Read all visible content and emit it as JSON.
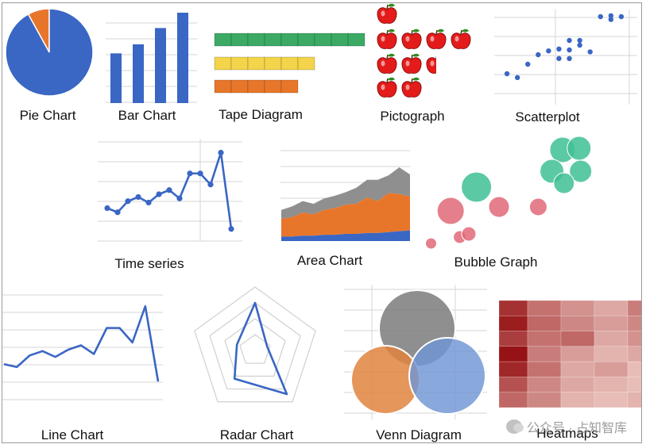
{
  "captions": {
    "pie": "Pie Chart",
    "bar": "Bar Chart",
    "tape": "Tape Diagram",
    "pictograph": "Pictograph",
    "scatter": "Scatterplot",
    "timeseries": "Time series",
    "area": "Area Chart",
    "bubble": "Bubble Graph",
    "line": "Line Chart",
    "radar": "Radar Chart",
    "venn": "Venn Diagram",
    "heatmap": "Heatmaps"
  },
  "watermark": "公众号 · 占知智库",
  "colors": {
    "blue": "#3a66c4",
    "orange": "#e8762a",
    "green": "#3caa64",
    "yellow": "#f3d44a",
    "grid": "#d6d6d6",
    "apple_red": "#e31b1b",
    "venn_gray": "#7b7b7b",
    "venn_orange": "#e0843e",
    "venn_blue": "#6f95d4",
    "bubble_pink": "#e06878",
    "bubble_teal": "#3fbf95",
    "area_gray": "#8f8f8f"
  },
  "chart_data": [
    {
      "id": "pie",
      "type": "pie",
      "values": [
        92,
        8
      ]
    },
    {
      "id": "bar",
      "type": "bar",
      "values": [
        55,
        65,
        83,
        100
      ],
      "ylim": [
        0,
        100
      ]
    },
    {
      "id": "tape",
      "type": "table",
      "rows": [
        9,
        6,
        5
      ]
    },
    {
      "id": "pictograph",
      "type": "table",
      "rows": [
        1,
        4,
        2.5,
        2
      ]
    },
    {
      "id": "scatter",
      "type": "scatter",
      "x": [
        1,
        2,
        3,
        4,
        5,
        6,
        6,
        7,
        7,
        7,
        8,
        8,
        9,
        10,
        11,
        11,
        12
      ],
      "y": [
        3,
        2.6,
        4,
        5,
        5.4,
        4.6,
        5.6,
        6.5,
        5.5,
        4.6,
        6,
        6.5,
        5.3,
        9,
        8.7,
        9.1,
        9
      ],
      "xlim": [
        0,
        13
      ],
      "ylim": [
        0,
        10
      ]
    },
    {
      "id": "timeseries",
      "type": "line",
      "values": [
        30,
        27,
        35,
        38,
        34,
        40,
        43,
        37,
        55,
        55,
        47,
        70,
        15
      ],
      "ylim": [
        0,
        80
      ]
    },
    {
      "id": "area",
      "type": "area",
      "series": [
        {
          "values": [
            5,
            5,
            6,
            6,
            7,
            7,
            8,
            8,
            9,
            9,
            10,
            11,
            12
          ]
        },
        {
          "values": [
            20,
            22,
            26,
            24,
            28,
            30,
            33,
            34,
            40,
            36,
            44,
            42,
            38
          ]
        },
        {
          "values": [
            10,
            12,
            13,
            12,
            13,
            14,
            14,
            18,
            20,
            24,
            20,
            30,
            25
          ]
        }
      ],
      "ylim": [
        0,
        100
      ]
    },
    {
      "id": "bubble",
      "type": "scatter",
      "points": [
        {
          "x": 14,
          "y": 83,
          "r": 19,
          "group": 1
        },
        {
          "x": 18,
          "y": 53,
          "r": 17,
          "group": 0
        },
        {
          "x": 5,
          "y": 12,
          "r": 7,
          "group": 0
        },
        {
          "x": 24,
          "y": 20,
          "r": 8,
          "group": 0
        },
        {
          "x": 30,
          "y": 24,
          "r": 9,
          "group": 0
        },
        {
          "x": 50,
          "y": 58,
          "r": 13,
          "group": 0
        },
        {
          "x": 76,
          "y": 58,
          "r": 11,
          "group": 0
        },
        {
          "x": 71,
          "y": 130,
          "r": 16,
          "group": 1
        },
        {
          "x": 82,
          "y": 132,
          "r": 15,
          "group": 1
        },
        {
          "x": 64,
          "y": 103,
          "r": 15,
          "group": 1
        },
        {
          "x": 83,
          "y": 103,
          "r": 14,
          "group": 1
        },
        {
          "x": 72,
          "y": 88,
          "r": 13,
          "group": 1
        }
      ]
    },
    {
      "id": "line",
      "type": "line",
      "values": [
        30,
        28,
        36,
        39,
        35,
        40,
        43,
        37,
        55,
        55,
        45,
        70,
        18
      ],
      "ylim": [
        0,
        80
      ]
    },
    {
      "id": "radar",
      "type": "line",
      "values": [
        0.75,
        0.2,
        0.85,
        0.55,
        0.3
      ]
    },
    {
      "id": "venn",
      "type": "table",
      "sets": 3
    },
    {
      "id": "heatmap",
      "type": "heatmap",
      "values": [
        [
          0.85,
          0.55,
          0.4,
          0.3,
          0.5
        ],
        [
          0.95,
          0.6,
          0.45,
          0.35,
          0.45
        ],
        [
          0.8,
          0.55,
          0.6,
          0.3,
          0.4
        ],
        [
          1.0,
          0.5,
          0.35,
          0.25,
          0.3
        ],
        [
          0.9,
          0.55,
          0.3,
          0.35,
          0.2
        ],
        [
          0.7,
          0.45,
          0.3,
          0.25,
          0.2
        ],
        [
          0.6,
          0.45,
          0.25,
          0.2,
          0.25
        ]
      ]
    }
  ]
}
